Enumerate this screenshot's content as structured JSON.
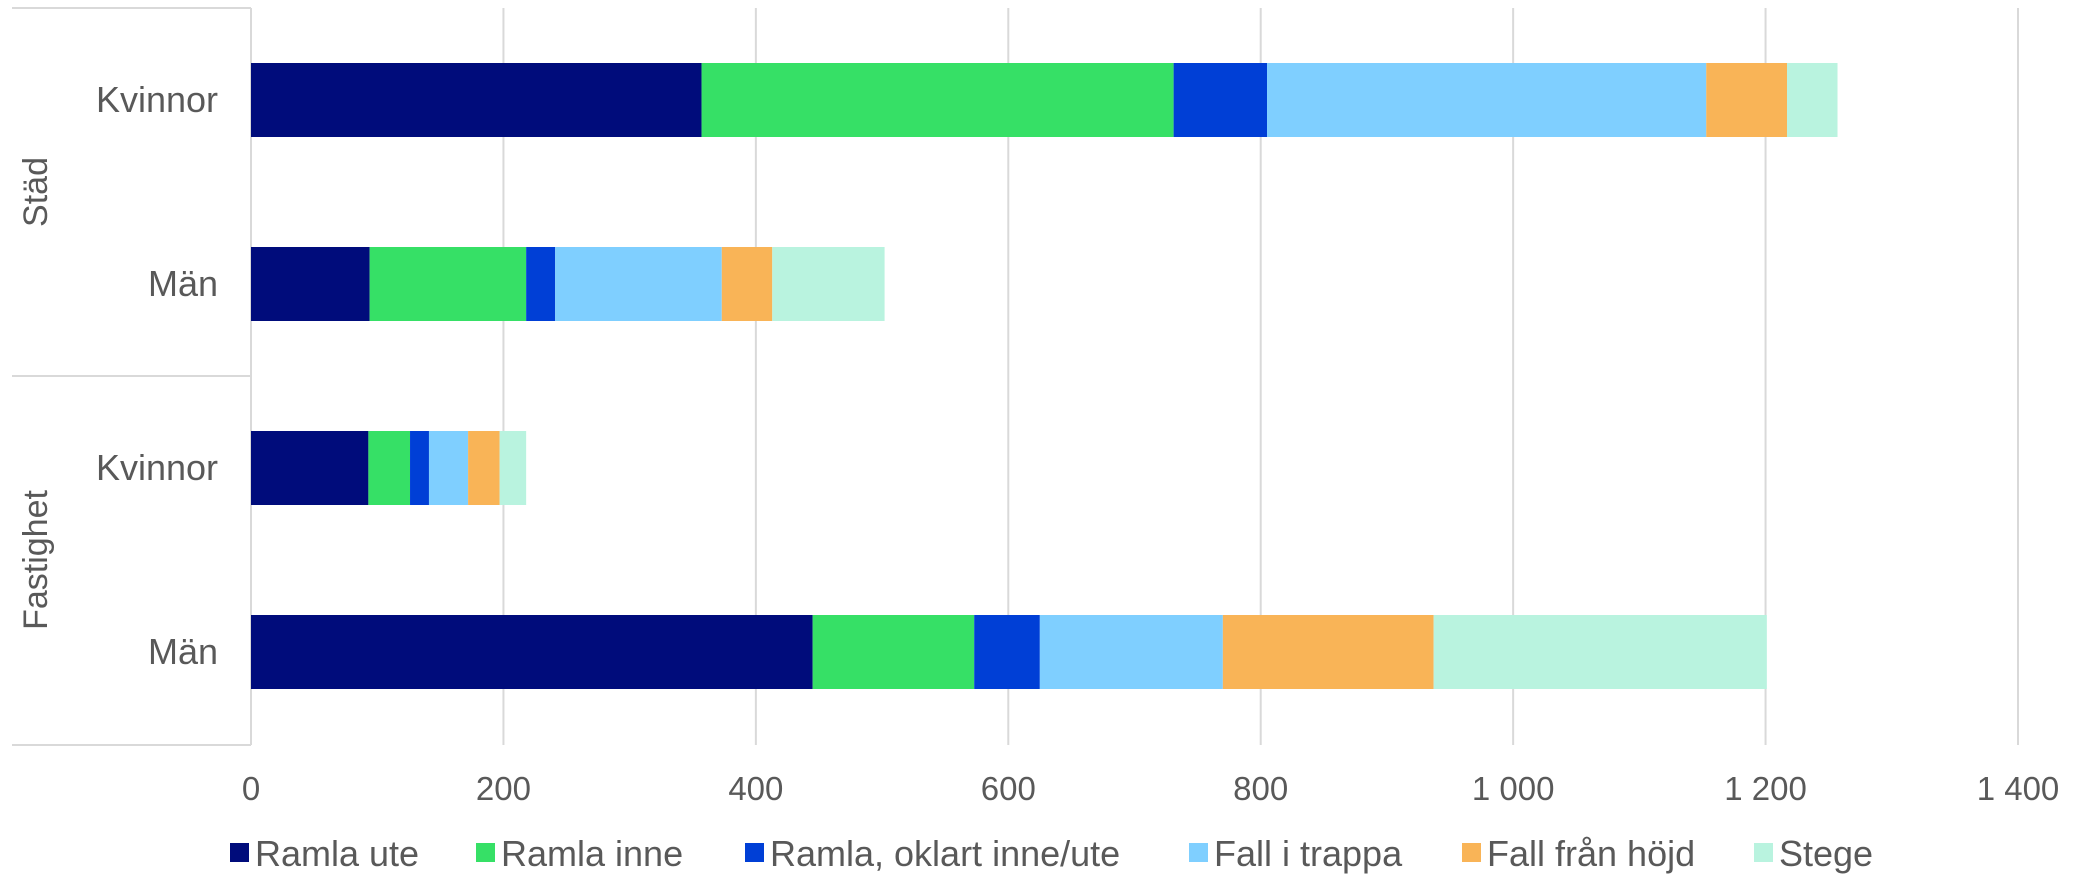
{
  "chart_data": {
    "type": "bar",
    "orientation": "horizontal",
    "stacked": true,
    "groups": [
      {
        "label": "Städ",
        "categories": [
          "Kvinnor",
          "Män"
        ]
      },
      {
        "label": "Fastighet",
        "categories": [
          "Kvinnor",
          "Män"
        ]
      }
    ],
    "categories": [
      "Städ – Kvinnor",
      "Städ – Män",
      "Fastighet – Kvinnor",
      "Fastighet – Män"
    ],
    "category_labels": [
      "Kvinnor",
      "Män",
      "Kvinnor",
      "Män"
    ],
    "series": [
      {
        "name": "Ramla ute",
        "color": "#000C7B",
        "values": [
          357,
          94,
          93,
          445
        ]
      },
      {
        "name": "Ramla inne",
        "color": "#36E066",
        "values": [
          374,
          124,
          33,
          128
        ]
      },
      {
        "name": "Ramla, oklart inne/ute",
        "color": "#003FD6",
        "values": [
          74,
          23,
          15,
          52
        ]
      },
      {
        "name": "Fall i trappa",
        "color": "#7FCFFF",
        "values": [
          348,
          132,
          31,
          145
        ]
      },
      {
        "name": "Fall från höjd",
        "color": "#F9B457",
        "values": [
          64,
          40,
          25,
          167
        ]
      },
      {
        "name": "Stege",
        "color": "#B9F3DF",
        "values": [
          40,
          89,
          21,
          264
        ]
      }
    ],
    "xlim": [
      0,
      1400
    ],
    "xticks": [
      0,
      200,
      400,
      600,
      800,
      1000,
      1200,
      1400
    ],
    "xtick_labels": [
      "0",
      "200",
      "400",
      "600",
      "800",
      "1 000",
      "1 200",
      "1 400"
    ],
    "grid": true,
    "legend_position": "bottom",
    "title": "",
    "xlabel": "",
    "ylabel": ""
  }
}
